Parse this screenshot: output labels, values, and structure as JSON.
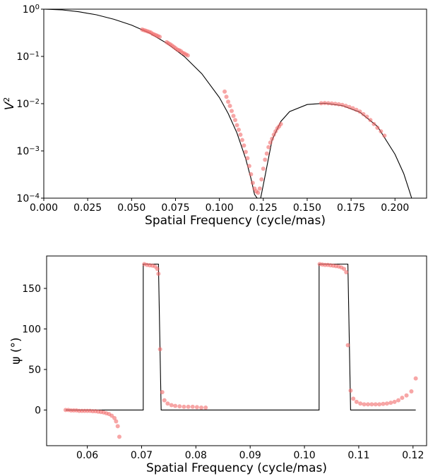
{
  "chart_data": [
    {
      "type": "scatter",
      "title": "",
      "xlabel": "Spatial Frequency (cycle/mas)",
      "ylabel_base": "V",
      "ylabel_sup": "2",
      "y_scale": "log",
      "xlim": [
        0.0,
        0.218
      ],
      "ylim": [
        0.0001,
        1.0
      ],
      "x_ticks": [
        0.0,
        0.025,
        0.05,
        0.075,
        0.1,
        0.125,
        0.15,
        0.175,
        0.2
      ],
      "x_tick_labels": [
        "0.000",
        "0.025",
        "0.050",
        "0.075",
        "0.100",
        "0.125",
        "0.150",
        "0.175",
        "0.200"
      ],
      "y_tick_exponents": [
        {
          "value": 1.0,
          "base": "10",
          "exp": "0"
        },
        {
          "value": 0.1,
          "base": "10",
          "exp": "−1"
        },
        {
          "value": 0.01,
          "base": "10",
          "exp": "−2"
        },
        {
          "value": 0.001,
          "base": "10",
          "exp": "−3"
        },
        {
          "value": 0.0001,
          "base": "10",
          "exp": "−4"
        }
      ],
      "grid": false,
      "model_color": "#000000",
      "point_color": "#f26b6b",
      "model_curve": {
        "x": [
          0.0,
          0.01,
          0.02,
          0.03,
          0.04,
          0.05,
          0.06,
          0.07,
          0.08,
          0.09,
          0.1,
          0.105,
          0.11,
          0.115,
          0.118,
          0.12,
          0.1215,
          0.1235,
          0.125,
          0.13,
          0.135,
          0.14,
          0.15,
          0.16,
          0.17,
          0.18,
          0.19,
          0.2,
          0.205,
          0.208,
          0.2095
        ],
        "y": [
          1.0,
          0.97,
          0.88,
          0.76,
          0.61,
          0.46,
          0.315,
          0.19,
          0.1,
          0.043,
          0.0135,
          0.0062,
          0.0024,
          0.00068,
          0.00026,
          0.00012,
          0.0001,
          0.0001,
          0.00019,
          0.0017,
          0.0042,
          0.0068,
          0.0096,
          0.0102,
          0.0091,
          0.0066,
          0.0033,
          0.00085,
          0.00033,
          0.00015,
          0.0001
        ]
      },
      "points": {
        "x": [
          0.056,
          0.057,
          0.058,
          0.059,
          0.06,
          0.061,
          0.062,
          0.063,
          0.064,
          0.065,
          0.066,
          0.07,
          0.071,
          0.072,
          0.073,
          0.074,
          0.075,
          0.076,
          0.077,
          0.078,
          0.079,
          0.08,
          0.081,
          0.082,
          0.103,
          0.104,
          0.105,
          0.106,
          0.107,
          0.108,
          0.109,
          0.11,
          0.111,
          0.112,
          0.113,
          0.114,
          0.115,
          0.116,
          0.117,
          0.118,
          0.119,
          0.12,
          0.121,
          0.122,
          0.123,
          0.124,
          0.125,
          0.126,
          0.127,
          0.128,
          0.129,
          0.13,
          0.131,
          0.132,
          0.133,
          0.134,
          0.135,
          0.158,
          0.16,
          0.162,
          0.164,
          0.166,
          0.168,
          0.17,
          0.172,
          0.174,
          0.176,
          0.178,
          0.18,
          0.182,
          0.184,
          0.186,
          0.188,
          0.19,
          0.192,
          0.194
        ],
        "y": [
          0.37,
          0.36,
          0.35,
          0.34,
          0.33,
          0.32,
          0.3,
          0.29,
          0.28,
          0.27,
          0.26,
          0.2,
          0.19,
          0.18,
          0.17,
          0.16,
          0.15,
          0.14,
          0.135,
          0.13,
          0.12,
          0.115,
          0.11,
          0.105,
          0.018,
          0.014,
          0.011,
          0.009,
          0.007,
          0.0055,
          0.0045,
          0.0035,
          0.0028,
          0.0022,
          0.0017,
          0.0013,
          0.00095,
          0.0007,
          0.00048,
          0.00032,
          0.00021,
          0.00016,
          0.00014,
          0.00013,
          0.00016,
          0.00025,
          0.00042,
          0.00065,
          0.00088,
          0.0012,
          0.0015,
          0.0018,
          0.0022,
          0.0026,
          0.003,
          0.0033,
          0.0037,
          0.0102,
          0.0103,
          0.0102,
          0.0101,
          0.0099,
          0.0097,
          0.0094,
          0.009,
          0.0085,
          0.008,
          0.0074,
          0.0068,
          0.006,
          0.0053,
          0.0045,
          0.0037,
          0.0031,
          0.0026,
          0.0021
        ]
      }
    },
    {
      "type": "scatter",
      "title": "",
      "xlabel": "Spatial Frequency (cycle/mas)",
      "ylabel": "ψ (°)",
      "xlim": [
        0.0525,
        0.1225
      ],
      "ylim": [
        -44,
        190
      ],
      "x_ticks": [
        0.06,
        0.07,
        0.08,
        0.09,
        0.1,
        0.11,
        0.12
      ],
      "x_tick_labels": [
        "0.06",
        "0.07",
        "0.08",
        "0.09",
        "0.10",
        "0.11",
        "0.12"
      ],
      "y_ticks": [
        0,
        50,
        100,
        150
      ],
      "y_tick_labels": [
        "0",
        "50",
        "100",
        "150"
      ],
      "grid": false,
      "model_color": "#000000",
      "point_color": "#f26b6b",
      "model_curve": {
        "x": [
          0.056,
          0.066,
          0.066,
          0.0703,
          0.0703,
          0.0731,
          0.0736,
          0.0823,
          0.0823,
          0.1027,
          0.1027,
          0.108,
          0.1085,
          0.1205,
          0.1205
        ],
        "y": [
          0,
          0,
          0,
          0,
          180,
          180,
          0,
          0,
          0,
          0,
          180,
          180,
          0,
          0,
          0
        ]
      },
      "points": {
        "x": [
          0.056,
          0.0565,
          0.057,
          0.0575,
          0.058,
          0.0585,
          0.059,
          0.0595,
          0.06,
          0.0605,
          0.061,
          0.0615,
          0.062,
          0.0625,
          0.063,
          0.0635,
          0.064,
          0.0645,
          0.065,
          0.0653,
          0.0656,
          0.0659,
          0.0705,
          0.071,
          0.0715,
          0.072,
          0.0725,
          0.0729,
          0.0731,
          0.0734,
          0.0738,
          0.0742,
          0.0748,
          0.0755,
          0.0762,
          0.077,
          0.0778,
          0.0786,
          0.0794,
          0.0802,
          0.081,
          0.0818,
          0.1028,
          0.1033,
          0.1038,
          0.1043,
          0.1048,
          0.1053,
          0.1058,
          0.1063,
          0.1068,
          0.1073,
          0.1077,
          0.108,
          0.1085,
          0.109,
          0.1096,
          0.1103,
          0.111,
          0.1117,
          0.1124,
          0.1131,
          0.1138,
          0.1145,
          0.1152,
          0.1159,
          0.1166,
          0.1173,
          0.118,
          0.1188,
          0.1197,
          0.1205
        ],
        "y": [
          0,
          0,
          -0.5,
          -0.5,
          -0.5,
          -1,
          -1,
          -1,
          -1,
          -1,
          -1.5,
          -1.5,
          -2,
          -2.5,
          -3,
          -4,
          -5,
          -7,
          -10,
          -14,
          -20,
          -33,
          180,
          179,
          178.5,
          178,
          177,
          174,
          168,
          75,
          22,
          12,
          8,
          6,
          5,
          4.5,
          4,
          4,
          4,
          3.5,
          3,
          3,
          180,
          179.5,
          179,
          179,
          178.5,
          178,
          177.5,
          177,
          176,
          174,
          170,
          80,
          24,
          14,
          10,
          8,
          7,
          7,
          7,
          7,
          7,
          7.5,
          8,
          9,
          10,
          12,
          15,
          18,
          23,
          39
        ]
      }
    }
  ]
}
